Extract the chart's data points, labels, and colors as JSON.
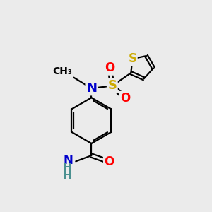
{
  "background_color": "#ebebeb",
  "atom_colors": {
    "C": "#000000",
    "N": "#0000cc",
    "O": "#ff0000",
    "S_sulfonyl": "#ccaa00",
    "S_thio": "#ccaa00",
    "H": "#4a9090"
  },
  "bond_color": "#000000",
  "bond_width": 1.6,
  "font_size_atoms": 12,
  "font_size_small": 10,
  "figsize": [
    3.0,
    3.0
  ],
  "dpi": 100,
  "xlim": [
    0,
    10
  ],
  "ylim": [
    0,
    10
  ]
}
